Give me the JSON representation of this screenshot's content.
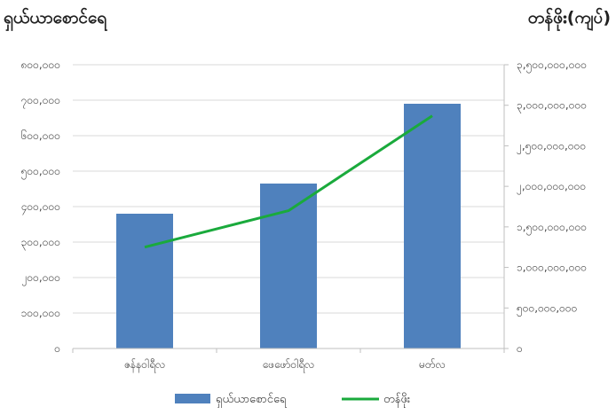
{
  "chart_data": {
    "type": "bar",
    "categories": [
      "ဇန်နဝါရီလ",
      "ဖေဖော်ဝါရီလ",
      "မတ်လ"
    ],
    "left_axis": {
      "title": "ရှယ်ယာစောင်ရေ",
      "ylim": [
        0,
        800000
      ],
      "ticks": [
        0,
        100000,
        200000,
        300000,
        400000,
        500000,
        600000,
        700000,
        800000
      ],
      "tick_labels": [
        "၀",
        "၁၀၀,၀၀၀",
        "၂၀၀,၀၀၀",
        "၃၀၀,၀၀၀",
        "၄၀၀,၀၀၀",
        "၅၀၀,၀၀၀",
        "၆၀၀,၀၀၀",
        "၇၀၀,၀၀၀",
        "၈၀၀,၀၀၀"
      ]
    },
    "right_axis": {
      "title": "တန်ဖိုး(ကျပ်)",
      "ylim": [
        0,
        3500000000
      ],
      "ticks": [
        0,
        500000000,
        1000000000,
        1500000000,
        2000000000,
        2500000000,
        3000000000,
        3500000000
      ],
      "tick_labels": [
        "၀",
        "၅၀၀,၀၀၀,၀၀၀",
        "၁,၀၀၀,၀၀၀,၀၀၀",
        "၁,၅၀၀,၀၀၀,၀၀၀",
        "၂,၀၀၀,၀၀၀,၀၀၀",
        "၂,၅၀၀,၀၀၀,၀၀၀",
        "၃,၀၀၀,၀၀၀,၀၀၀",
        "၃,၅၀၀,၀၀၀,၀၀၀"
      ]
    },
    "series": [
      {
        "name": "ရှယ်ယာစောင်ရေ",
        "type": "bar",
        "axis": "left",
        "color": "#4f81bd",
        "values": [
          380000,
          465000,
          690000
        ]
      },
      {
        "name": "တန်ဖိုး",
        "type": "line",
        "axis": "right",
        "color": "#1aaa3c",
        "values": [
          1250000000,
          1700000000,
          2870000000
        ]
      }
    ],
    "grid": true,
    "legend": "bottom"
  }
}
